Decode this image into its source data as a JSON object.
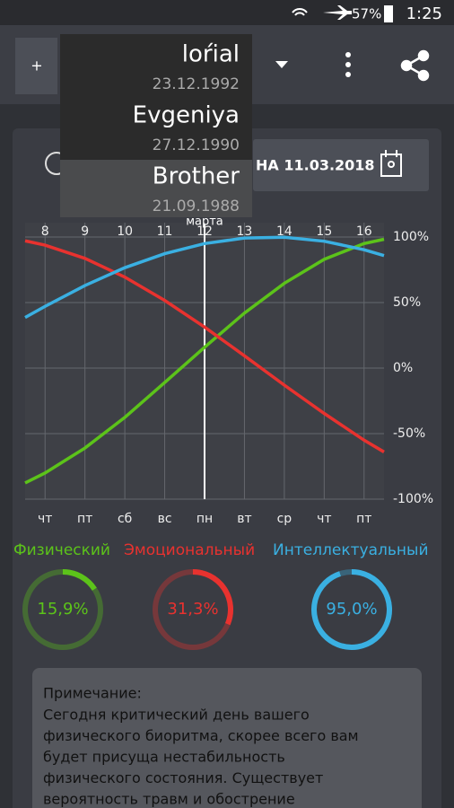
{
  "status_bar": {
    "battery": "57%",
    "time": "1:25"
  },
  "add_button": "+",
  "profiles": [
    {
      "name": "loŕial",
      "date": "23.12.1992"
    },
    {
      "name": "Evgeniya",
      "date": "27.12.1990"
    },
    {
      "name": "Brother",
      "date": "21.09.1988"
    }
  ],
  "date_button": "НА 11.03.2018",
  "chart_data": {
    "type": "line",
    "x": [
      7.5,
      8,
      9,
      10,
      11,
      12,
      13,
      14,
      15,
      16,
      16.5
    ],
    "xlim": [
      7.5,
      16.5
    ],
    "xticks": [
      8,
      9,
      10,
      11,
      12,
      13,
      14,
      15,
      16
    ],
    "weekday_labels": [
      "чт",
      "пт",
      "сб",
      "вс",
      "пн",
      "вт",
      "ср",
      "чт",
      "пт"
    ],
    "current_x": 12,
    "annotation": "марта",
    "ylim": [
      -100,
      100
    ],
    "yticks": [
      {
        "value": 100,
        "label": "100%"
      },
      {
        "value": 50,
        "label": "50%"
      },
      {
        "value": 0,
        "label": "0%"
      },
      {
        "value": -50,
        "label": "-50%"
      },
      {
        "value": -100,
        "label": "-100%"
      }
    ],
    "grid": true,
    "series": [
      {
        "name": "Физический",
        "color": "#5cc31a",
        "values": [
          -87.6,
          -80,
          -61,
          -37.6,
          -11,
          15.9,
          42,
          64.7,
          83,
          95,
          98.3
        ]
      },
      {
        "name": "Эмоциональный",
        "color": "#e8322f",
        "values": [
          97.1,
          93.8,
          83.7,
          69.4,
          51.6,
          31.3,
          9.4,
          -13,
          -34.6,
          -55,
          -64
        ]
      },
      {
        "name": "Интеллектуальный",
        "color": "#3ab0e2",
        "values": [
          38.6,
          47.1,
          63,
          76.6,
          87.3,
          95,
          99.2,
          99.8,
          96.8,
          90.3,
          85.8
        ]
      }
    ]
  },
  "gauges": {
    "values": [
      15.9,
      31.3,
      95.0
    ],
    "value_labels": [
      "15,9%",
      "31,3%",
      "95,0%"
    ]
  },
  "note": {
    "title": "Примечание:",
    "lines": [
      "  Сегодня критический день вашего",
      "физического биоритма, скорее всего вам",
      "будет присуща нестабильность",
      "физического состояния. Существует",
      "вероятность травм и обострение"
    ]
  }
}
